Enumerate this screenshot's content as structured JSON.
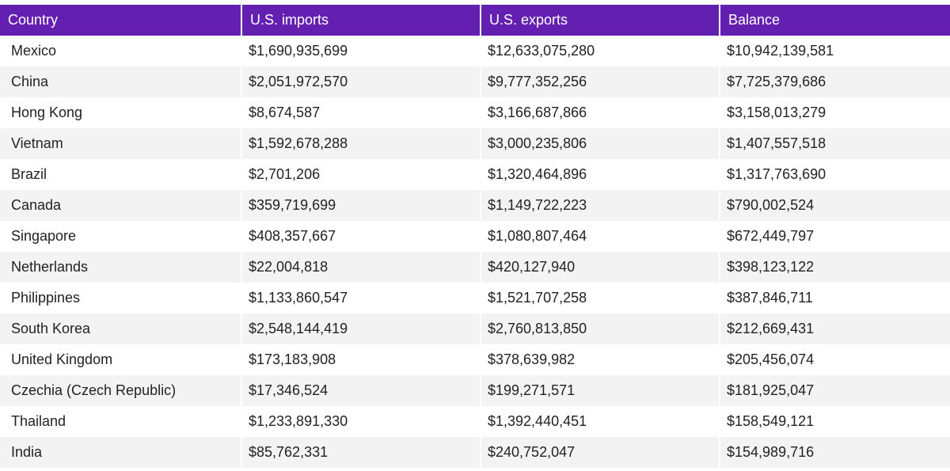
{
  "chart_data": {
    "type": "table",
    "columns": [
      "Country",
      "U.S. imports",
      "U.S. exports",
      "Balance"
    ],
    "rows": [
      [
        "Mexico",
        "$1,690,935,699",
        "$12,633,075,280",
        "$10,942,139,581"
      ],
      [
        "China",
        "$2,051,972,570",
        "$9,777,352,256",
        "$7,725,379,686"
      ],
      [
        "Hong Kong",
        "$8,674,587",
        "$3,166,687,866",
        "$3,158,013,279"
      ],
      [
        "Vietnam",
        "$1,592,678,288",
        "$3,000,235,806",
        "$1,407,557,518"
      ],
      [
        "Brazil",
        "$2,701,206",
        "$1,320,464,896",
        "$1,317,763,690"
      ],
      [
        "Canada",
        "$359,719,699",
        "$1,149,722,223",
        "$790,002,524"
      ],
      [
        "Singapore",
        "$408,357,667",
        "$1,080,807,464",
        "$672,449,797"
      ],
      [
        "Netherlands",
        "$22,004,818",
        "$420,127,940",
        "$398,123,122"
      ],
      [
        "Philippines",
        "$1,133,860,547",
        "$1,521,707,258",
        "$387,846,711"
      ],
      [
        "South Korea",
        "$2,548,144,419",
        "$2,760,813,850",
        "$212,669,431"
      ],
      [
        "United Kingdom",
        "$173,183,908",
        "$378,639,982",
        "$205,456,074"
      ],
      [
        "Czechia (Czech Republic)",
        "$17,346,524",
        "$199,271,571",
        "$181,925,047"
      ],
      [
        "Thailand",
        "$1,233,891,330",
        "$1,392,440,451",
        "$158,549,121"
      ],
      [
        "India",
        "$85,762,331",
        "$240,752,047",
        "$154,989,716"
      ]
    ]
  },
  "colors": {
    "header_bg": "#6320b0",
    "header_text": "#ffffff",
    "row_alt_bg": "#f3f3f3",
    "row_bg": "#ffffff",
    "body_text": "#222222"
  }
}
